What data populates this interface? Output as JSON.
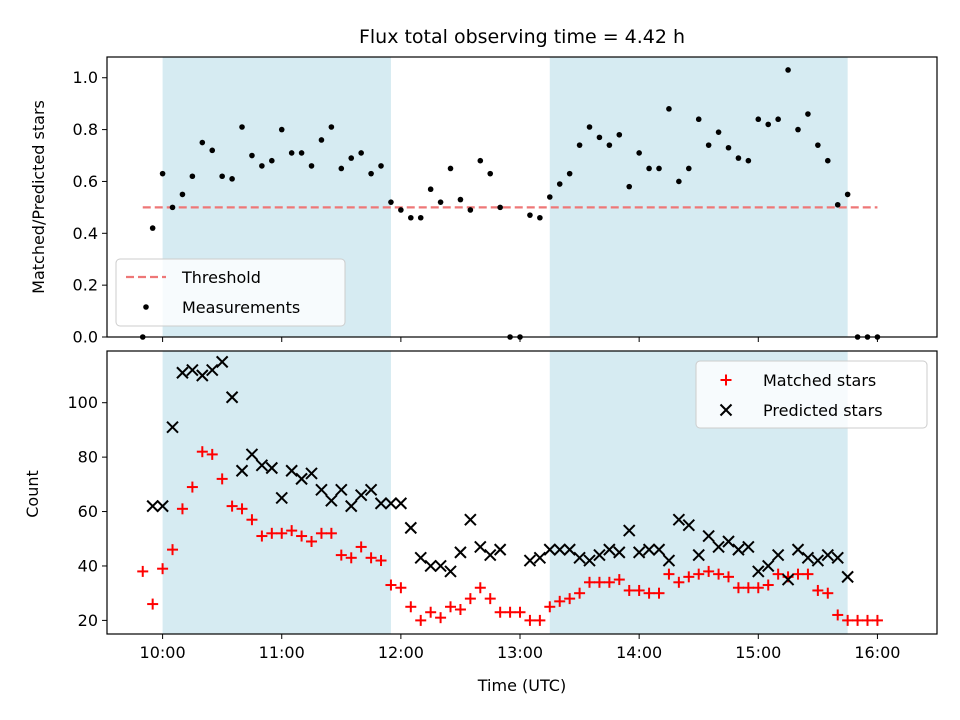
{
  "title": "Flux total observing time = 4.42 h",
  "chart_data": [
    {
      "type": "scatter",
      "ylabel": "Matched/Predicted stars",
      "xlabel": "",
      "xlim": [
        "09:32",
        "16:30"
      ],
      "ylim": [
        0,
        1.08
      ],
      "grid": false,
      "legend_position": "lower-left",
      "y_ticks": [
        "0.0",
        "0.2",
        "0.4",
        "0.6",
        "0.8",
        "1.0"
      ],
      "shaded_intervals": [
        [
          "10:00",
          "11:55"
        ],
        [
          "13:15",
          "15:45"
        ]
      ],
      "threshold": {
        "name": "Threshold",
        "value": 0.5,
        "x_range": [
          "09:50",
          "16:00"
        ],
        "color": "#ee7777"
      },
      "series": [
        {
          "name": "Measurements",
          "color": "#000000",
          "points": [
            [
              "09:50",
              0.0
            ],
            [
              "09:55",
              0.42
            ],
            [
              "10:00",
              0.63
            ],
            [
              "10:05",
              0.5
            ],
            [
              "10:10",
              0.55
            ],
            [
              "10:15",
              0.62
            ],
            [
              "10:20",
              0.75
            ],
            [
              "10:25",
              0.72
            ],
            [
              "10:30",
              0.62
            ],
            [
              "10:35",
              0.61
            ],
            [
              "10:40",
              0.81
            ],
            [
              "10:45",
              0.7
            ],
            [
              "10:50",
              0.66
            ],
            [
              "10:55",
              0.68
            ],
            [
              "11:00",
              0.8
            ],
            [
              "11:05",
              0.71
            ],
            [
              "11:10",
              0.71
            ],
            [
              "11:15",
              0.66
            ],
            [
              "11:20",
              0.76
            ],
            [
              "11:25",
              0.81
            ],
            [
              "11:30",
              0.65
            ],
            [
              "11:35",
              0.69
            ],
            [
              "11:40",
              0.71
            ],
            [
              "11:45",
              0.63
            ],
            [
              "11:50",
              0.66
            ],
            [
              "11:55",
              0.52
            ],
            [
              "12:00",
              0.49
            ],
            [
              "12:05",
              0.46
            ],
            [
              "12:10",
              0.46
            ],
            [
              "12:15",
              0.57
            ],
            [
              "12:20",
              0.52
            ],
            [
              "12:25",
              0.65
            ],
            [
              "12:30",
              0.53
            ],
            [
              "12:35",
              0.49
            ],
            [
              "12:40",
              0.68
            ],
            [
              "12:45",
              0.63
            ],
            [
              "12:50",
              0.5
            ],
            [
              "12:55",
              0.0
            ],
            [
              "13:00",
              0.0
            ],
            [
              "13:05",
              0.47
            ],
            [
              "13:10",
              0.46
            ],
            [
              "13:15",
              0.54
            ],
            [
              "13:20",
              0.59
            ],
            [
              "13:25",
              0.63
            ],
            [
              "13:30",
              0.74
            ],
            [
              "13:35",
              0.81
            ],
            [
              "13:40",
              0.77
            ],
            [
              "13:45",
              0.74
            ],
            [
              "13:50",
              0.78
            ],
            [
              "13:55",
              0.58
            ],
            [
              "14:00",
              0.71
            ],
            [
              "14:05",
              0.65
            ],
            [
              "14:10",
              0.65
            ],
            [
              "14:15",
              0.88
            ],
            [
              "14:20",
              0.6
            ],
            [
              "14:25",
              0.65
            ],
            [
              "14:30",
              0.84
            ],
            [
              "14:35",
              0.74
            ],
            [
              "14:40",
              0.79
            ],
            [
              "14:45",
              0.73
            ],
            [
              "14:50",
              0.69
            ],
            [
              "14:55",
              0.68
            ],
            [
              "15:00",
              0.84
            ],
            [
              "15:05",
              0.82
            ],
            [
              "15:10",
              0.84
            ],
            [
              "15:15",
              1.03
            ],
            [
              "15:20",
              0.8
            ],
            [
              "15:25",
              0.86
            ],
            [
              "15:30",
              0.74
            ],
            [
              "15:35",
              0.68
            ],
            [
              "15:40",
              0.51
            ],
            [
              "15:45",
              0.55
            ],
            [
              "15:50",
              0.0
            ],
            [
              "15:55",
              0.0
            ],
            [
              "16:00",
              0.0
            ]
          ]
        }
      ]
    },
    {
      "type": "scatter",
      "ylabel": "Count",
      "xlabel": "Time (UTC)",
      "xlim": [
        "09:32",
        "16:30"
      ],
      "ylim": [
        15,
        119
      ],
      "grid": false,
      "legend_position": "top-right",
      "x_ticks": [
        "10:00",
        "11:00",
        "12:00",
        "13:00",
        "14:00",
        "15:00",
        "16:00"
      ],
      "y_ticks": [
        "20",
        "40",
        "60",
        "80",
        "100"
      ],
      "shaded_intervals": [
        [
          "10:00",
          "11:55"
        ],
        [
          "13:15",
          "15:45"
        ]
      ],
      "series": [
        {
          "name": "Matched stars",
          "marker": "plus",
          "color": "#ff0000",
          "points": [
            [
              "09:50",
              38
            ],
            [
              "09:55",
              26
            ],
            [
              "10:00",
              39
            ],
            [
              "10:05",
              46
            ],
            [
              "10:10",
              61
            ],
            [
              "10:15",
              69
            ],
            [
              "10:20",
              82
            ],
            [
              "10:25",
              81
            ],
            [
              "10:30",
              72
            ],
            [
              "10:35",
              62
            ],
            [
              "10:40",
              61
            ],
            [
              "10:45",
              57
            ],
            [
              "10:50",
              51
            ],
            [
              "10:55",
              52
            ],
            [
              "11:00",
              52
            ],
            [
              "11:05",
              53
            ],
            [
              "11:10",
              51
            ],
            [
              "11:15",
              49
            ],
            [
              "11:20",
              52
            ],
            [
              "11:25",
              52
            ],
            [
              "11:30",
              44
            ],
            [
              "11:35",
              43
            ],
            [
              "11:40",
              47
            ],
            [
              "11:45",
              43
            ],
            [
              "11:50",
              42
            ],
            [
              "11:55",
              33
            ],
            [
              "12:00",
              32
            ],
            [
              "12:05",
              25
            ],
            [
              "12:10",
              20
            ],
            [
              "12:15",
              23
            ],
            [
              "12:20",
              21
            ],
            [
              "12:25",
              25
            ],
            [
              "12:30",
              24
            ],
            [
              "12:35",
              28
            ],
            [
              "12:40",
              32
            ],
            [
              "12:45",
              28
            ],
            [
              "12:50",
              23
            ],
            [
              "12:55",
              23
            ],
            [
              "13:00",
              23
            ],
            [
              "13:05",
              20
            ],
            [
              "13:10",
              20
            ],
            [
              "13:15",
              25
            ],
            [
              "13:20",
              27
            ],
            [
              "13:25",
              28
            ],
            [
              "13:30",
              30
            ],
            [
              "13:35",
              34
            ],
            [
              "13:40",
              34
            ],
            [
              "13:45",
              34
            ],
            [
              "13:50",
              35
            ],
            [
              "13:55",
              31
            ],
            [
              "14:00",
              31
            ],
            [
              "14:05",
              30
            ],
            [
              "14:10",
              30
            ],
            [
              "14:15",
              37
            ],
            [
              "14:20",
              34
            ],
            [
              "14:25",
              36
            ],
            [
              "14:30",
              37
            ],
            [
              "14:35",
              38
            ],
            [
              "14:40",
              37
            ],
            [
              "14:45",
              36
            ],
            [
              "14:50",
              32
            ],
            [
              "14:55",
              32
            ],
            [
              "15:00",
              32
            ],
            [
              "15:05",
              33
            ],
            [
              "15:10",
              37
            ],
            [
              "15:15",
              36
            ],
            [
              "15:20",
              37
            ],
            [
              "15:25",
              37
            ],
            [
              "15:30",
              31
            ],
            [
              "15:35",
              30
            ],
            [
              "15:40",
              22
            ],
            [
              "15:45",
              20
            ],
            [
              "15:50",
              20
            ],
            [
              "15:55",
              20
            ],
            [
              "16:00",
              20
            ]
          ]
        },
        {
          "name": "Predicted stars",
          "marker": "cross",
          "color": "#000000",
          "points": [
            [
              "09:55",
              62
            ],
            [
              "10:00",
              62
            ],
            [
              "10:05",
              91
            ],
            [
              "10:10",
              111
            ],
            [
              "10:15",
              112
            ],
            [
              "10:20",
              110
            ],
            [
              "10:25",
              112
            ],
            [
              "10:30",
              115
            ],
            [
              "10:35",
              102
            ],
            [
              "10:40",
              75
            ],
            [
              "10:45",
              81
            ],
            [
              "10:50",
              77
            ],
            [
              "10:55",
              76
            ],
            [
              "11:00",
              65
            ],
            [
              "11:05",
              75
            ],
            [
              "11:10",
              72
            ],
            [
              "11:15",
              74
            ],
            [
              "11:20",
              68
            ],
            [
              "11:25",
              64
            ],
            [
              "11:30",
              68
            ],
            [
              "11:35",
              62
            ],
            [
              "11:40",
              66
            ],
            [
              "11:45",
              68
            ],
            [
              "11:50",
              63
            ],
            [
              "11:55",
              63
            ],
            [
              "12:00",
              63
            ],
            [
              "12:05",
              54
            ],
            [
              "12:10",
              43
            ],
            [
              "12:15",
              40
            ],
            [
              "12:20",
              40
            ],
            [
              "12:25",
              38
            ],
            [
              "12:30",
              45
            ],
            [
              "12:35",
              57
            ],
            [
              "12:40",
              47
            ],
            [
              "12:45",
              44
            ],
            [
              "12:50",
              46
            ],
            [
              "13:05",
              42
            ],
            [
              "13:10",
              43
            ],
            [
              "13:15",
              46
            ],
            [
              "13:20",
              46
            ],
            [
              "13:25",
              46
            ],
            [
              "13:30",
              43
            ],
            [
              "13:35",
              42
            ],
            [
              "13:40",
              44
            ],
            [
              "13:45",
              46
            ],
            [
              "13:50",
              45
            ],
            [
              "13:55",
              53
            ],
            [
              "14:00",
              45
            ],
            [
              "14:05",
              46
            ],
            [
              "14:10",
              46
            ],
            [
              "14:15",
              42
            ],
            [
              "14:20",
              57
            ],
            [
              "14:25",
              55
            ],
            [
              "14:30",
              44
            ],
            [
              "14:35",
              51
            ],
            [
              "14:40",
              47
            ],
            [
              "14:45",
              49
            ],
            [
              "14:50",
              46
            ],
            [
              "14:55",
              47
            ],
            [
              "15:00",
              38
            ],
            [
              "15:05",
              40
            ],
            [
              "15:10",
              44
            ],
            [
              "15:15",
              35
            ],
            [
              "15:20",
              46
            ],
            [
              "15:25",
              43
            ],
            [
              "15:30",
              42
            ],
            [
              "15:35",
              44
            ],
            [
              "15:40",
              43
            ],
            [
              "15:45",
              36
            ]
          ]
        }
      ]
    }
  ]
}
